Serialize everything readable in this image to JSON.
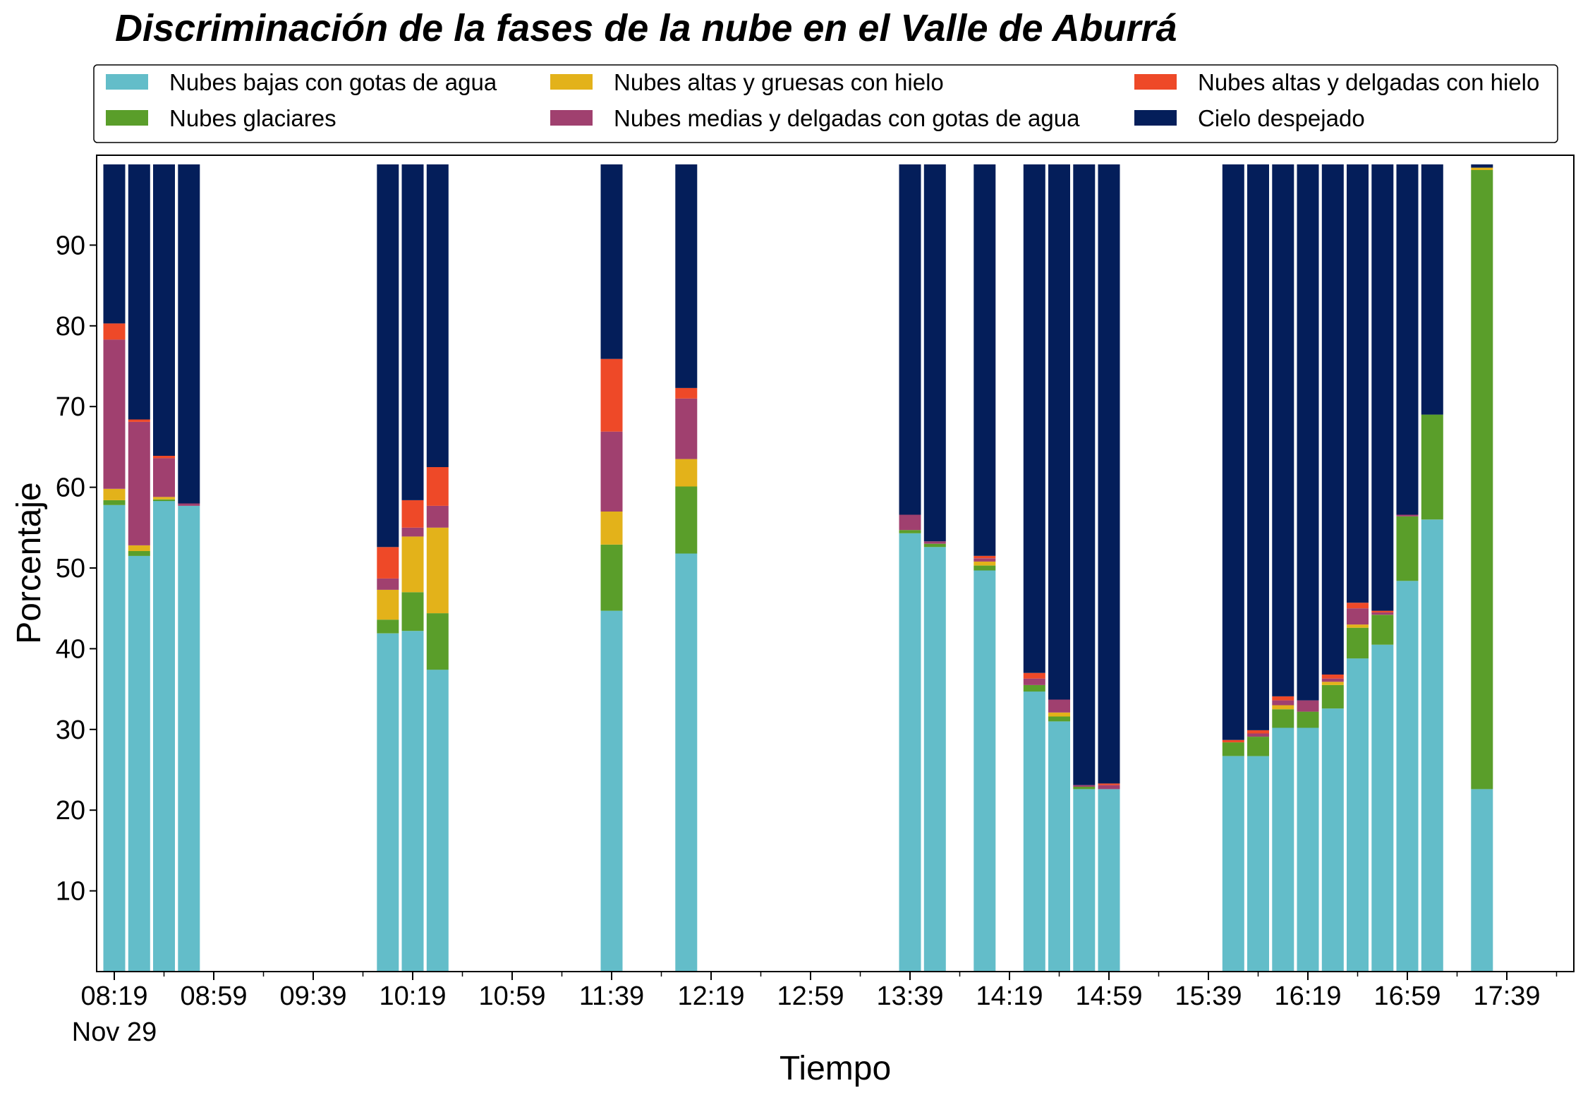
{
  "chart_data": {
    "type": "bar",
    "stacked": true,
    "title": "Discriminación de la fases de la nube en el Valle de Aburrá",
    "xlabel": "Tiempo",
    "ylabel": "Porcentaje",
    "ylim": [
      0,
      100
    ],
    "yticks": [
      "10",
      "20",
      "30",
      "40",
      "50",
      "60",
      "70",
      "80",
      "90"
    ],
    "xticks": [
      "08:19",
      "08:59",
      "09:39",
      "10:19",
      "10:59",
      "11:39",
      "12:19",
      "12:59",
      "13:39",
      "14:19",
      "14:59",
      "15:39",
      "16:19",
      "16:59",
      "17:39"
    ],
    "xtick_date": "Nov 29",
    "grid": false,
    "legend_position": "top",
    "times": [
      "08:19",
      "08:29",
      "08:39",
      "08:49",
      "10:09",
      "10:19",
      "10:29",
      "11:39",
      "12:09",
      "13:39",
      "13:49",
      "14:09",
      "14:29",
      "14:39",
      "14:49",
      "14:59",
      "15:49",
      "15:59",
      "16:09",
      "16:19",
      "16:29",
      "16:39",
      "16:49",
      "16:59",
      "17:09",
      "17:29"
    ],
    "series": [
      {
        "name": "Nubes bajas con gotas de agua",
        "color": "#63bdc9",
        "values": [
          57.8,
          51.5,
          58.3,
          57.7,
          41.9,
          42.2,
          37.4,
          44.7,
          51.8,
          54.3,
          52.6,
          49.7,
          34.7,
          31.0,
          22.6,
          22.6,
          26.7,
          26.7,
          30.2,
          30.2,
          32.6,
          38.8,
          40.5,
          48.4,
          56.0,
          22.6
        ]
      },
      {
        "name": "Nubes glaciares",
        "color": "#5a9e2a",
        "values": [
          0.6,
          0.6,
          0.2,
          0,
          1.7,
          4.8,
          7.0,
          8.2,
          8.3,
          0.4,
          0.4,
          0.6,
          0.8,
          0.6,
          0.3,
          0,
          1.7,
          2.4,
          2.3,
          2.0,
          2.9,
          3.8,
          3.7,
          8.0,
          13.0,
          76.7
        ]
      },
      {
        "name": "Nubes altas y gruesas con hielo",
        "color": "#e3b21a",
        "values": [
          1.4,
          0.7,
          0.3,
          0,
          3.7,
          6.9,
          10.6,
          4.1,
          3.4,
          0,
          0,
          0.5,
          0,
          0.5,
          0,
          0,
          0,
          0,
          0.5,
          0,
          0.4,
          0.4,
          0,
          0,
          0,
          0.3
        ]
      },
      {
        "name": "Nubes medias y delgadas con gotas de agua",
        "color": "#a0406f",
        "values": [
          18.5,
          15.3,
          4.8,
          0.3,
          1.4,
          1.1,
          2.7,
          9.9,
          7.5,
          1.9,
          0.3,
          0.4,
          0.8,
          1.6,
          0.2,
          0.5,
          0,
          0.4,
          0.6,
          1.4,
          0.4,
          2.0,
          0.3,
          0.2,
          0,
          0
        ]
      },
      {
        "name": "Nubes altas y delgadas con hielo",
        "color": "#ee4928",
        "values": [
          2.0,
          0.3,
          0.3,
          0,
          3.9,
          3.4,
          4.8,
          9.0,
          1.3,
          0,
          0,
          0.3,
          0.7,
          0,
          0,
          0.2,
          0.3,
          0.4,
          0.5,
          0,
          0.5,
          0.7,
          0.2,
          0,
          0,
          0
        ]
      },
      {
        "name": "Cielo despejado",
        "color": "#041e5a",
        "values": [
          19.7,
          31.6,
          36.1,
          42.0,
          47.4,
          41.6,
          37.5,
          24.1,
          27.7,
          43.4,
          46.7,
          48.5,
          63.0,
          66.3,
          76.9,
          76.7,
          71.3,
          70.1,
          65.9,
          66.4,
          63.2,
          54.3,
          55.3,
          43.4,
          31.0,
          0.4
        ]
      }
    ],
    "legend": [
      {
        "label": "Nubes bajas con gotas de agua",
        "color": "#63bdc9"
      },
      {
        "label": "Nubes altas y gruesas con hielo",
        "color": "#e3b21a"
      },
      {
        "label": "Nubes altas y delgadas con hielo",
        "color": "#ee4928"
      },
      {
        "label": "Nubes glaciares",
        "color": "#5a9e2a"
      },
      {
        "label": "Nubes medias y delgadas con gotas de agua",
        "color": "#a0406f"
      },
      {
        "label": "Cielo despejado",
        "color": "#041e5a"
      }
    ]
  }
}
